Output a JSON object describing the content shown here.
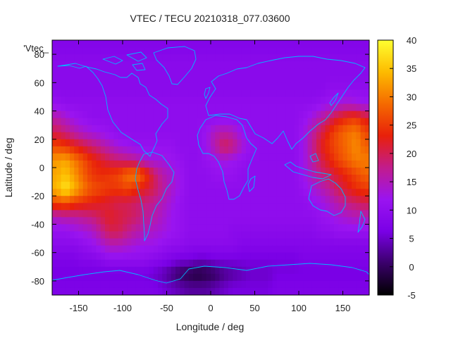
{
  "chart_data": {
    "type": "heatmap",
    "title": "VTEC / TECU 20210318_077.03600",
    "xlabel": "Longitude / deg",
    "ylabel": "Latitude / deg",
    "legend_label": "'Vtec_",
    "xlim": [
      -180,
      180
    ],
    "ylim": [
      -90,
      90
    ],
    "x_ticks": [
      -150,
      -100,
      -50,
      0,
      50,
      100,
      150
    ],
    "y_ticks": [
      -80,
      -60,
      -40,
      -20,
      0,
      20,
      40,
      60,
      80
    ],
    "colorbar": {
      "range": [
        -5,
        40
      ],
      "ticks": [
        -5,
        0,
        5,
        10,
        15,
        20,
        25,
        30,
        35,
        40
      ],
      "palette": [
        "#000000",
        "#3a006a",
        "#7a00e6",
        "#9a14f0",
        "#c21c8c",
        "#e8200a",
        "#f56a00",
        "#fdbb00",
        "#ffff30"
      ]
    },
    "grid": {
      "lon_step": 10,
      "lat_step": 10,
      "lons": [
        -175,
        -165,
        -155,
        -145,
        -135,
        -125,
        -115,
        -105,
        -95,
        -85,
        -75,
        -65,
        -55,
        -45,
        -35,
        -25,
        -15,
        -5,
        5,
        15,
        25,
        35,
        45,
        55,
        65,
        75,
        85,
        95,
        105,
        115,
        125,
        135,
        145,
        155,
        165,
        175
      ],
      "lats": [
        85,
        75,
        65,
        55,
        45,
        35,
        25,
        15,
        5,
        -5,
        -15,
        -25,
        -35,
        -45,
        -55,
        -65,
        -75,
        -85
      ],
      "values": [
        [
          8,
          8,
          8,
          8,
          8,
          8,
          8,
          8,
          8,
          8,
          8,
          8,
          8,
          8,
          8,
          8,
          8,
          8,
          8,
          8,
          8,
          8,
          8,
          8,
          8,
          8,
          8,
          8,
          8,
          8,
          8,
          8,
          8,
          8,
          8,
          8
        ],
        [
          9,
          9,
          9,
          9,
          9,
          9,
          9,
          9,
          9,
          9,
          9,
          9,
          9,
          9,
          9,
          9,
          9,
          9,
          9,
          9,
          9,
          9,
          9,
          9,
          9,
          9,
          9,
          9,
          9,
          9,
          9,
          9,
          9,
          9,
          9,
          9
        ],
        [
          9,
          9,
          9,
          9,
          9,
          9,
          9,
          9,
          9,
          9,
          9,
          9,
          9,
          9,
          9,
          9,
          9,
          9,
          9,
          9,
          9,
          9,
          9,
          9,
          9,
          9,
          9,
          9,
          9,
          9,
          9,
          9,
          9,
          9,
          9,
          9
        ],
        [
          9,
          9,
          9,
          9,
          9,
          9,
          9,
          9,
          9,
          9,
          9,
          9,
          9,
          9,
          9,
          9,
          9,
          9,
          9,
          9,
          9,
          9,
          9,
          9,
          9,
          9,
          9,
          9,
          9,
          9,
          9,
          10,
          10,
          10,
          10,
          10
        ],
        [
          11,
          10,
          10,
          10,
          10,
          10,
          10,
          10,
          10,
          10,
          10,
          10,
          10,
          10,
          10,
          10,
          10,
          10,
          10,
          10,
          10,
          10,
          10,
          10,
          10,
          10,
          10,
          10,
          10,
          10,
          11,
          12,
          13,
          14,
          13,
          12
        ],
        [
          16,
          14,
          12,
          11,
          10,
          10,
          10,
          10,
          10,
          10,
          10,
          10,
          10,
          10,
          10,
          10,
          10,
          10,
          10,
          10,
          10,
          10,
          10,
          10,
          10,
          10,
          10,
          10,
          11,
          13,
          16,
          19,
          22,
          24,
          25,
          22
        ],
        [
          20,
          18,
          16,
          14,
          13,
          12,
          11,
          10,
          10,
          10,
          10,
          10,
          10,
          10,
          10,
          10,
          10,
          12,
          15,
          16,
          15,
          12,
          10,
          10,
          10,
          10,
          10,
          10,
          12,
          16,
          20,
          24,
          27,
          29,
          30,
          26
        ],
        [
          26,
          25,
          23,
          21,
          19,
          17,
          15,
          13,
          12,
          11,
          11,
          11,
          11,
          11,
          10,
          10,
          10,
          12,
          16,
          20,
          18,
          14,
          11,
          10,
          10,
          10,
          10,
          10,
          12,
          17,
          22,
          25,
          27,
          29,
          31,
          28
        ],
        [
          32,
          33,
          30,
          27,
          24,
          22,
          20,
          19,
          18,
          17,
          14,
          13,
          13,
          12,
          11,
          10,
          10,
          11,
          12,
          13,
          12,
          11,
          10,
          10,
          10,
          10,
          10,
          10,
          12,
          16,
          20,
          23,
          26,
          28,
          30,
          30
        ],
        [
          33,
          35,
          32,
          28,
          25,
          24,
          25,
          26,
          29,
          30,
          26,
          20,
          16,
          14,
          12,
          10,
          10,
          10,
          11,
          11,
          11,
          10,
          10,
          10,
          10,
          10,
          10,
          10,
          12,
          15,
          18,
          20,
          22,
          24,
          26,
          28
        ],
        [
          34,
          38,
          34,
          30,
          27,
          26,
          25,
          25,
          26,
          24,
          22,
          20,
          17,
          14,
          12,
          10,
          10,
          10,
          10,
          10,
          10,
          10,
          10,
          10,
          10,
          10,
          10,
          10,
          11,
          13,
          15,
          17,
          20,
          22,
          24,
          25
        ],
        [
          26,
          27,
          25,
          24,
          23,
          22,
          21,
          20,
          20,
          19,
          18,
          17,
          15,
          13,
          11,
          10,
          10,
          10,
          10,
          10,
          10,
          10,
          10,
          10,
          10,
          10,
          10,
          10,
          10,
          11,
          12,
          14,
          16,
          18,
          19,
          20
        ],
        [
          15,
          16,
          16,
          17,
          18,
          20,
          22,
          21,
          20,
          19,
          17,
          16,
          14,
          12,
          11,
          10,
          10,
          10,
          10,
          10,
          10,
          10,
          10,
          10,
          10,
          10,
          10,
          10,
          10,
          10,
          11,
          12,
          13,
          14,
          15,
          15
        ],
        [
          11,
          11,
          12,
          13,
          14,
          17,
          20,
          20,
          18,
          16,
          15,
          14,
          13,
          12,
          11,
          10,
          10,
          10,
          10,
          10,
          9,
          9,
          9,
          9,
          9,
          9,
          9,
          9,
          9,
          9,
          10,
          10,
          11,
          11,
          11,
          11
        ],
        [
          9,
          9,
          9,
          10,
          11,
          13,
          15,
          15,
          14,
          13,
          12,
          12,
          11,
          10,
          10,
          9,
          9,
          9,
          9,
          9,
          9,
          8,
          8,
          8,
          8,
          8,
          8,
          8,
          8,
          8,
          8,
          8,
          8,
          8,
          8,
          8
        ],
        [
          7,
          7,
          7,
          8,
          8,
          9,
          10,
          10,
          10,
          10,
          10,
          9,
          8,
          7,
          6,
          6,
          5,
          5,
          6,
          6,
          6,
          6,
          6,
          6,
          6,
          6,
          6,
          6,
          7,
          7,
          7,
          7,
          7,
          7,
          7,
          7
        ],
        [
          6,
          6,
          6,
          6,
          6,
          6,
          6,
          6,
          6,
          6,
          6,
          5,
          4,
          2,
          0,
          -1,
          -2,
          -1,
          0,
          2,
          3,
          4,
          5,
          5,
          5,
          6,
          6,
          6,
          6,
          6,
          6,
          6,
          6,
          6,
          6,
          6
        ],
        [
          7,
          7,
          7,
          7,
          7,
          7,
          7,
          7,
          7,
          7,
          7,
          7,
          6,
          5,
          4,
          3,
          3,
          3,
          4,
          5,
          6,
          6,
          6,
          6,
          6,
          7,
          7,
          7,
          7,
          7,
          7,
          7,
          7,
          7,
          7,
          7
        ]
      ]
    },
    "overlay": "coastlines"
  }
}
